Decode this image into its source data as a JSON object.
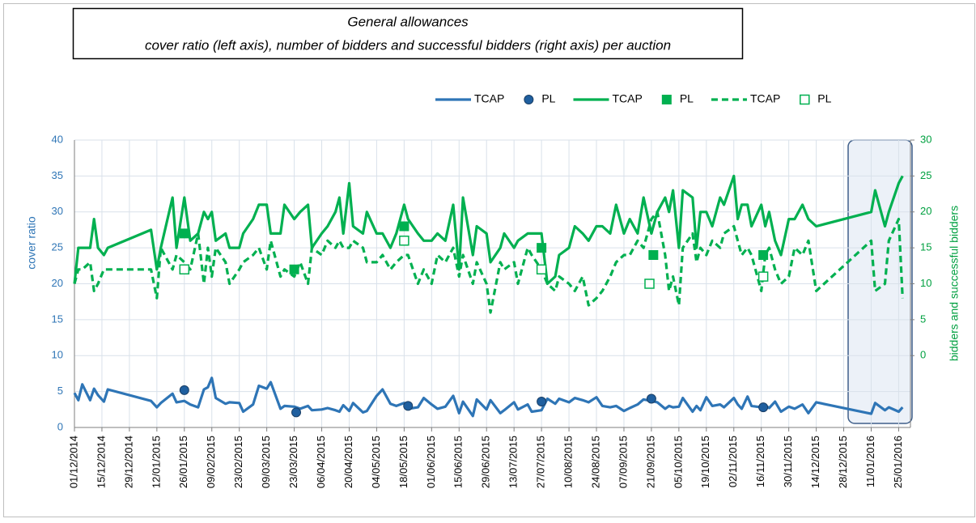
{
  "chart_data": {
    "type": "line",
    "title": "General allowances",
    "subtitle": "cover ratio (left axis), number of bidders and successful bidders (right axis) per auction",
    "ylabel": "cover ratio",
    "y2label": "bidders and successful bidders",
    "xlim": [
      "01/12/2014",
      "31/01/2016"
    ],
    "xticks": [
      "01/12/2014",
      "15/12/2014",
      "29/12/2014",
      "12/01/2015",
      "26/01/2015",
      "09/02/2015",
      "23/02/2015",
      "09/03/2015",
      "23/03/2015",
      "06/04/2015",
      "20/04/2015",
      "04/05/2015",
      "18/05/2015",
      "01/06/2015",
      "15/06/2015",
      "29/06/2015",
      "13/07/2015",
      "27/07/2015",
      "10/08/2015",
      "24/08/2015",
      "07/09/2015",
      "21/09/2015",
      "05/10/2015",
      "19/10/2015",
      "02/11/2015",
      "16/11/2015",
      "30/11/2015",
      "14/12/2015",
      "28/12/2015",
      "11/01/2016",
      "25/01/2016"
    ],
    "ylim": [
      0,
      40
    ],
    "yticks": [
      0,
      5,
      10,
      15,
      20,
      25,
      30,
      35,
      40
    ],
    "y2lim": [
      -10,
      30
    ],
    "y2ticks": [
      0,
      5,
      10,
      15,
      20,
      25,
      30
    ],
    "grid": true,
    "legend": "top",
    "series": [
      {
        "name": "TCAP",
        "color": "#2e75b6",
        "style": "solid",
        "axis": "y",
        "x": [
          "01/12/2014",
          "03/12/2014",
          "05/12/2014",
          "09/12/2014",
          "11/12/2014",
          "13/12/2014",
          "16/12/2014",
          "18/12/2014",
          "09/01/2015",
          "12/01/2015",
          "14/01/2015",
          "20/01/2015",
          "22/01/2015",
          "26/01/2015",
          "29/01/2015",
          "02/02/2015",
          "05/02/2015",
          "07/02/2015",
          "09/02/2015",
          "11/02/2015",
          "16/02/2015",
          "18/02/2015",
          "23/02/2015",
          "25/02/2015",
          "02/03/2015",
          "05/03/2015",
          "09/03/2015",
          "11/03/2015",
          "16/03/2015",
          "18/03/2015",
          "23/03/2015",
          "26/03/2015",
          "30/03/2015",
          "01/04/2015",
          "06/04/2015",
          "09/04/2015",
          "13/04/2015",
          "15/04/2015",
          "17/04/2015",
          "20/04/2015",
          "22/04/2015",
          "27/04/2015",
          "29/04/2015",
          "04/05/2015",
          "07/05/2015",
          "11/05/2015",
          "14/05/2015",
          "18/05/2015",
          "20/05/2015",
          "25/05/2015",
          "28/05/2015",
          "01/06/2015",
          "04/06/2015",
          "08/06/2015",
          "12/06/2015",
          "15/06/2015",
          "17/06/2015",
          "22/06/2015",
          "24/06/2015",
          "29/06/2015",
          "01/07/2015",
          "06/07/2015",
          "08/07/2015",
          "13/07/2015",
          "15/07/2015",
          "20/07/2015",
          "22/07/2015",
          "27/07/2015",
          "30/07/2015",
          "03/08/2015",
          "05/08/2015",
          "10/08/2015",
          "13/08/2015",
          "17/08/2015",
          "20/08/2015",
          "24/08/2015",
          "27/08/2015",
          "31/08/2015",
          "03/09/2015",
          "07/09/2015",
          "10/09/2015",
          "14/09/2015",
          "17/09/2015",
          "21/09/2015",
          "24/09/2015",
          "28/09/2015",
          "30/09/2015",
          "02/10/2015",
          "05/10/2015",
          "07/10/2015",
          "12/10/2015",
          "14/10/2015",
          "16/10/2015",
          "19/10/2015",
          "22/10/2015",
          "26/10/2015",
          "28/10/2015",
          "02/11/2015",
          "04/11/2015",
          "06/11/2015",
          "09/11/2015",
          "11/11/2015",
          "16/11/2015",
          "18/11/2015",
          "20/11/2015",
          "23/11/2015",
          "26/11/2015",
          "30/11/2015",
          "03/12/2015",
          "07/12/2015",
          "10/12/2015",
          "14/12/2015",
          "11/01/2016",
          "13/01/2016",
          "18/01/2016",
          "20/01/2016",
          "25/01/2016",
          "27/01/2016"
        ],
        "values": [
          4.8,
          3.8,
          6.0,
          3.8,
          5.4,
          4.5,
          3.6,
          5.3,
          3.7,
          2.8,
          3.4,
          4.7,
          3.5,
          3.7,
          3.2,
          2.8,
          5.3,
          5.6,
          6.9,
          4.1,
          3.3,
          3.5,
          3.4,
          2.2,
          3.2,
          5.8,
          5.4,
          6.3,
          2.6,
          3.0,
          2.9,
          2.6,
          3.0,
          2.4,
          2.5,
          2.7,
          2.4,
          2.2,
          3.1,
          2.3,
          3.4,
          2.1,
          2.3,
          4.4,
          5.3,
          3.3,
          3.0,
          3.4,
          2.6,
          2.8,
          4.1,
          3.2,
          2.6,
          2.9,
          4.4,
          2.0,
          3.6,
          1.6,
          3.9,
          2.5,
          3.8,
          2.0,
          2.4,
          3.5,
          2.5,
          3.2,
          2.2,
          2.4,
          4.0,
          3.3,
          4.0,
          3.5,
          4.1,
          3.8,
          3.5,
          4.2,
          3.0,
          2.8,
          3.0,
          2.3,
          2.7,
          3.2,
          3.9,
          3.7,
          3.5,
          2.6,
          3.0,
          2.8,
          2.9,
          4.1,
          2.2,
          3.0,
          2.4,
          4.2,
          3.0,
          3.2,
          2.8,
          4.1,
          3.2,
          2.6,
          4.3,
          3.0,
          2.8,
          3.1,
          2.7,
          3.6,
          2.2,
          2.9,
          2.6,
          3.2,
          2.0,
          3.5,
          1.9,
          3.4,
          2.4,
          2.8,
          2.2,
          2.8
        ]
      },
      {
        "name": "PL",
        "color": "#1f5f9f",
        "marker": "circle",
        "axis": "y",
        "x": [
          "26/01/2015",
          "24/03/2015",
          "20/05/2015",
          "27/07/2015",
          "21/09/2015",
          "17/11/2015"
        ],
        "values": [
          5.2,
          2.1,
          3.0,
          3.6,
          4.0,
          2.8
        ]
      },
      {
        "name": "TCAP",
        "color": "#00b050",
        "style": "solid",
        "axis": "y2",
        "x": [
          "01/12/2014",
          "03/12/2014",
          "05/12/2014",
          "09/12/2014",
          "11/12/2014",
          "13/12/2014",
          "16/12/2014",
          "18/12/2014",
          "09/01/2015",
          "12/01/2015",
          "14/01/2015",
          "20/01/2015",
          "22/01/2015",
          "26/01/2015",
          "29/01/2015",
          "02/02/2015",
          "05/02/2015",
          "07/02/2015",
          "09/02/2015",
          "11/02/2015",
          "16/02/2015",
          "18/02/2015",
          "23/02/2015",
          "25/02/2015",
          "02/03/2015",
          "05/03/2015",
          "09/03/2015",
          "11/03/2015",
          "16/03/2015",
          "18/03/2015",
          "23/03/2015",
          "26/03/2015",
          "30/03/2015",
          "01/04/2015",
          "06/04/2015",
          "09/04/2015",
          "13/04/2015",
          "15/04/2015",
          "17/04/2015",
          "20/04/2015",
          "22/04/2015",
          "27/04/2015",
          "29/04/2015",
          "04/05/2015",
          "07/05/2015",
          "11/05/2015",
          "14/05/2015",
          "18/05/2015",
          "20/05/2015",
          "25/05/2015",
          "28/05/2015",
          "01/06/2015",
          "04/06/2015",
          "08/06/2015",
          "12/06/2015",
          "15/06/2015",
          "17/06/2015",
          "22/06/2015",
          "24/06/2015",
          "29/06/2015",
          "01/07/2015",
          "06/07/2015",
          "08/07/2015",
          "13/07/2015",
          "15/07/2015",
          "20/07/2015",
          "22/07/2015",
          "27/07/2015",
          "30/07/2015",
          "03/08/2015",
          "05/08/2015",
          "10/08/2015",
          "13/08/2015",
          "17/08/2015",
          "20/08/2015",
          "24/08/2015",
          "27/08/2015",
          "31/08/2015",
          "03/09/2015",
          "07/09/2015",
          "10/09/2015",
          "14/09/2015",
          "17/09/2015",
          "21/09/2015",
          "24/09/2015",
          "28/09/2015",
          "30/09/2015",
          "02/10/2015",
          "05/10/2015",
          "07/10/2015",
          "12/10/2015",
          "14/10/2015",
          "16/10/2015",
          "19/10/2015",
          "22/10/2015",
          "26/10/2015",
          "28/10/2015",
          "02/11/2015",
          "04/11/2015",
          "06/11/2015",
          "09/11/2015",
          "11/11/2015",
          "16/11/2015",
          "18/11/2015",
          "20/11/2015",
          "23/11/2015",
          "26/11/2015",
          "30/11/2015",
          "03/12/2015",
          "07/12/2015",
          "10/12/2015",
          "14/12/2015",
          "11/01/2016",
          "13/01/2016",
          "18/01/2016",
          "20/01/2016",
          "25/01/2016",
          "27/01/2016"
        ],
        "values": [
          10,
          15,
          15,
          15,
          19,
          15,
          14,
          15,
          17.5,
          12,
          15,
          22,
          15,
          22,
          16,
          17,
          20,
          19,
          20,
          16,
          17,
          15,
          15,
          17,
          19,
          21,
          21,
          17,
          17,
          21,
          19,
          20,
          21,
          15,
          17,
          18,
          20,
          22,
          17,
          24,
          18,
          17,
          20,
          17,
          17,
          15,
          17,
          21,
          19,
          17,
          16,
          16,
          17,
          16,
          21,
          12,
          22,
          14,
          18,
          17,
          13,
          15,
          17,
          15,
          16,
          17,
          17,
          17,
          10,
          11,
          14,
          15,
          18,
          17,
          16,
          18,
          18,
          17,
          21,
          17,
          19,
          17,
          22,
          17,
          20,
          22,
          20,
          23,
          15,
          23,
          22,
          15,
          20,
          20,
          18,
          22,
          21,
          25,
          19,
          21,
          21,
          18,
          21,
          18,
          20,
          16,
          14,
          19,
          19,
          21,
          19,
          18,
          20,
          23,
          18,
          20,
          24,
          25
        ]
      },
      {
        "name": "PL",
        "color": "#00b050",
        "marker": "square",
        "axis": "y2",
        "x": [
          "26/01/2015",
          "23/03/2015",
          "18/05/2015",
          "27/07/2015",
          "22/09/2015",
          "17/11/2015"
        ],
        "values": [
          17,
          12,
          18,
          15,
          14,
          14
        ]
      },
      {
        "name": "TCAP",
        "color": "#00b050",
        "style": "dashed",
        "axis": "y2",
        "x": [
          "01/12/2014",
          "03/12/2014",
          "05/12/2014",
          "09/12/2014",
          "11/12/2014",
          "13/12/2014",
          "16/12/2014",
          "18/12/2014",
          "09/01/2015",
          "12/01/2015",
          "14/01/2015",
          "20/01/2015",
          "22/01/2015",
          "26/01/2015",
          "29/01/2015",
          "02/02/2015",
          "05/02/2015",
          "07/02/2015",
          "09/02/2015",
          "11/02/2015",
          "16/02/2015",
          "18/02/2015",
          "23/02/2015",
          "25/02/2015",
          "02/03/2015",
          "05/03/2015",
          "09/03/2015",
          "11/03/2015",
          "16/03/2015",
          "18/03/2015",
          "23/03/2015",
          "26/03/2015",
          "30/03/2015",
          "01/04/2015",
          "06/04/2015",
          "09/04/2015",
          "13/04/2015",
          "15/04/2015",
          "17/04/2015",
          "20/04/2015",
          "22/04/2015",
          "27/04/2015",
          "29/04/2015",
          "04/05/2015",
          "07/05/2015",
          "11/05/2015",
          "14/05/2015",
          "18/05/2015",
          "20/05/2015",
          "25/05/2015",
          "28/05/2015",
          "01/06/2015",
          "04/06/2015",
          "08/06/2015",
          "12/06/2015",
          "15/06/2015",
          "17/06/2015",
          "22/06/2015",
          "24/06/2015",
          "29/06/2015",
          "01/07/2015",
          "06/07/2015",
          "08/07/2015",
          "13/07/2015",
          "15/07/2015",
          "20/07/2015",
          "22/07/2015",
          "27/07/2015",
          "30/07/2015",
          "03/08/2015",
          "05/08/2015",
          "10/08/2015",
          "13/08/2015",
          "17/08/2015",
          "20/08/2015",
          "24/08/2015",
          "27/08/2015",
          "31/08/2015",
          "03/09/2015",
          "07/09/2015",
          "10/09/2015",
          "14/09/2015",
          "17/09/2015",
          "21/09/2015",
          "24/09/2015",
          "28/09/2015",
          "30/09/2015",
          "02/10/2015",
          "05/10/2015",
          "07/10/2015",
          "12/10/2015",
          "14/10/2015",
          "16/10/2015",
          "19/10/2015",
          "22/10/2015",
          "26/10/2015",
          "28/10/2015",
          "02/11/2015",
          "04/11/2015",
          "06/11/2015",
          "09/11/2015",
          "11/11/2015",
          "16/11/2015",
          "18/11/2015",
          "20/11/2015",
          "23/11/2015",
          "26/11/2015",
          "30/11/2015",
          "03/12/2015",
          "07/12/2015",
          "10/12/2015",
          "14/12/2015",
          "11/01/2016",
          "13/01/2016",
          "18/01/2016",
          "20/01/2016",
          "25/01/2016",
          "27/01/2016"
        ],
        "values": [
          10,
          12,
          12,
          13,
          9,
          10,
          12,
          12,
          12,
          8,
          15,
          12,
          14,
          13,
          12,
          17,
          10,
          15,
          11,
          15,
          13,
          10,
          12,
          13,
          14,
          15,
          12,
          16,
          11,
          12,
          11,
          13,
          10,
          15,
          14,
          16,
          15,
          16,
          15,
          15,
          16,
          15,
          13,
          13,
          14,
          12,
          13,
          14,
          14,
          10,
          12,
          10,
          14,
          13,
          15,
          11,
          14,
          10,
          13,
          10,
          6,
          13,
          12,
          13,
          10,
          15,
          14,
          12,
          10,
          9,
          11,
          10,
          9,
          11,
          7,
          8,
          9,
          11,
          13,
          14,
          14,
          16,
          15,
          19,
          20,
          14,
          9,
          11,
          7,
          15,
          17,
          13,
          15,
          14,
          16,
          15,
          17,
          18,
          16,
          14,
          15,
          14,
          9,
          14,
          15,
          12,
          10,
          11,
          15,
          14,
          16,
          9,
          16,
          9,
          10,
          16,
          19,
          8
        ]
      },
      {
        "name": "PL",
        "color": "#00b050",
        "marker": "square-open",
        "axis": "y2",
        "x": [
          "26/01/2015",
          "18/05/2015",
          "27/07/2015",
          "20/09/2015",
          "17/11/2015"
        ],
        "values": [
          12,
          16,
          12,
          10,
          11
        ]
      }
    ]
  }
}
